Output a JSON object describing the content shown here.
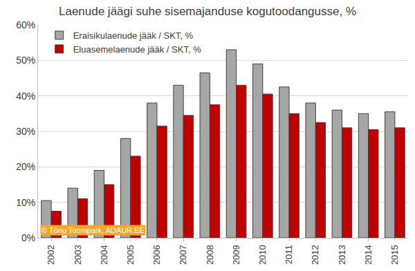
{
  "chart_data": {
    "type": "bar",
    "title": "Laenude jäägi suhe sisemajanduse kogutoodangusse, %",
    "categories": [
      "2002",
      "2003",
      "2004",
      "2005",
      "2006",
      "2007",
      "2008",
      "2009",
      "2010",
      "2011",
      "2012",
      "2013",
      "2014",
      "2015"
    ],
    "series": [
      {
        "name": "Eraisikulaenude jääk / SKT, %",
        "color": "#a6a6a6",
        "values": [
          10.5,
          14,
          19,
          28,
          38,
          43,
          46.5,
          53,
          49,
          42.5,
          38,
          36,
          35,
          35.5
        ]
      },
      {
        "name": "Eluasemelaenude jääk / SKT, %",
        "color": "#c00000",
        "values": [
          7.5,
          11,
          15,
          23,
          31.5,
          34.5,
          37.5,
          43,
          40.5,
          35,
          32.5,
          31,
          30.5,
          31
        ]
      }
    ],
    "ylim": [
      0,
      60
    ],
    "yticks": [
      {
        "value": 0,
        "label": "0%"
      },
      {
        "value": 10,
        "label": "10%"
      },
      {
        "value": 20,
        "label": "20%"
      },
      {
        "value": 30,
        "label": "30%"
      },
      {
        "value": 40,
        "label": "40%"
      },
      {
        "value": 50,
        "label": "50%"
      },
      {
        "value": 60,
        "label": "60%"
      }
    ],
    "grid": true,
    "legend": "top-left",
    "annotations": [
      "© Tõnu Toompark, ADAUR.EE"
    ]
  }
}
